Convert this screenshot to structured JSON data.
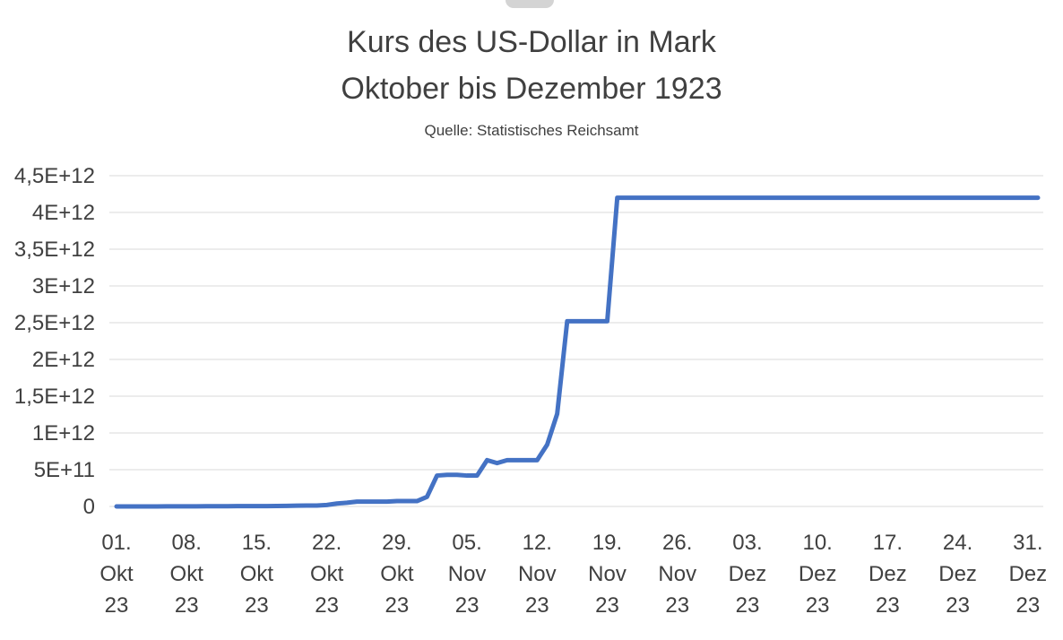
{
  "page": {
    "background": "#ffffff"
  },
  "chart": {
    "title_line1": "Kurs des US-Dollar in Mark",
    "title_line2": "Oktober bis Dezember 1923",
    "subtitle": "Quelle: Statistisches Reichsamt",
    "title_color": "#404040",
    "line_color": "#4472C4",
    "gridline_color": "#D9D9D9",
    "axis_label_color": "#404040"
  },
  "chart_data": {
    "type": "line",
    "title": "Kurs des US-Dollar in Mark Oktober bis Dezember 1923",
    "subtitle": "Quelle: Statistisches Reichsamt",
    "xlabel": "",
    "ylabel": "",
    "ylim": [
      0,
      4500000000000
    ],
    "grid": true,
    "legend": false,
    "x_unit": "days since 01. Okt 1923 (daily values through 31. Dez 1923)",
    "y_ticks": [
      0,
      500000000000,
      1000000000000,
      1500000000000,
      2000000000000,
      2500000000000,
      3000000000000,
      3500000000000,
      4000000000000,
      4500000000000
    ],
    "y_tick_labels": [
      "0",
      "5E+11",
      "1E+12",
      "1,5E+12",
      "2E+12",
      "2,5E+12",
      "3E+12",
      "3,5E+12",
      "4E+12",
      "4,5E+12"
    ],
    "x_ticks": [
      {
        "day_index": 0,
        "lines": [
          "01.",
          "Okt",
          "23"
        ]
      },
      {
        "day_index": 7,
        "lines": [
          "08.",
          "Okt",
          "23"
        ]
      },
      {
        "day_index": 14,
        "lines": [
          "15.",
          "Okt",
          "23"
        ]
      },
      {
        "day_index": 21,
        "lines": [
          "22.",
          "Okt",
          "23"
        ]
      },
      {
        "day_index": 28,
        "lines": [
          "29.",
          "Okt",
          "23"
        ]
      },
      {
        "day_index": 35,
        "lines": [
          "05.",
          "Nov",
          "23"
        ]
      },
      {
        "day_index": 42,
        "lines": [
          "12.",
          "Nov",
          "23"
        ]
      },
      {
        "day_index": 49,
        "lines": [
          "19.",
          "Nov",
          "23"
        ]
      },
      {
        "day_index": 56,
        "lines": [
          "26.",
          "Nov",
          "23"
        ]
      },
      {
        "day_index": 63,
        "lines": [
          "03.",
          "Dez",
          "23"
        ]
      },
      {
        "day_index": 70,
        "lines": [
          "10.",
          "Dez",
          "23"
        ]
      },
      {
        "day_index": 77,
        "lines": [
          "17.",
          "Dez",
          "23"
        ]
      },
      {
        "day_index": 84,
        "lines": [
          "24.",
          "Dez",
          "23"
        ]
      },
      {
        "day_index": 91,
        "lines": [
          "31.",
          "Dez",
          "23"
        ]
      }
    ],
    "series": [
      {
        "name": "Kurs des US-Dollar in Mark",
        "values": [
          242000000,
          242000000,
          440000000,
          440000000,
          440000000,
          1100000000,
          1100000000,
          1100000000,
          1800000000,
          2500000000,
          3000000000,
          3700000000,
          3900000000,
          3900000000,
          3900000000,
          4500000000,
          6000000000,
          7000000000,
          10000000000,
          12000000000,
          12000000000,
          20000000000,
          40000000000,
          50000000000,
          65000000000,
          65000000000,
          65000000000,
          65000000000,
          73000000000,
          72500000000,
          72500000000,
          130000000000,
          420000000000,
          430000000000,
          430000000000,
          420000000000,
          420000000000,
          630000000000,
          590000000000,
          630000000000,
          630000000000,
          630000000000,
          630000000000,
          840000000000,
          1260000000000,
          2520000000000,
          2520000000000,
          2520000000000,
          2520000000000,
          2520000000000,
          4200000000000,
          4200000000000,
          4200000000000,
          4200000000000,
          4200000000000,
          4200000000000,
          4200000000000,
          4200000000000,
          4200000000000,
          4200000000000,
          4200000000000,
          4200000000000,
          4200000000000,
          4200000000000,
          4200000000000,
          4200000000000,
          4200000000000,
          4200000000000,
          4200000000000,
          4200000000000,
          4200000000000,
          4200000000000,
          4200000000000,
          4200000000000,
          4200000000000,
          4200000000000,
          4200000000000,
          4200000000000,
          4200000000000,
          4200000000000,
          4200000000000,
          4200000000000,
          4200000000000,
          4200000000000,
          4200000000000,
          4200000000000,
          4200000000000,
          4200000000000,
          4200000000000,
          4200000000000,
          4200000000000,
          4200000000000,
          4200000000000
        ]
      }
    ]
  }
}
